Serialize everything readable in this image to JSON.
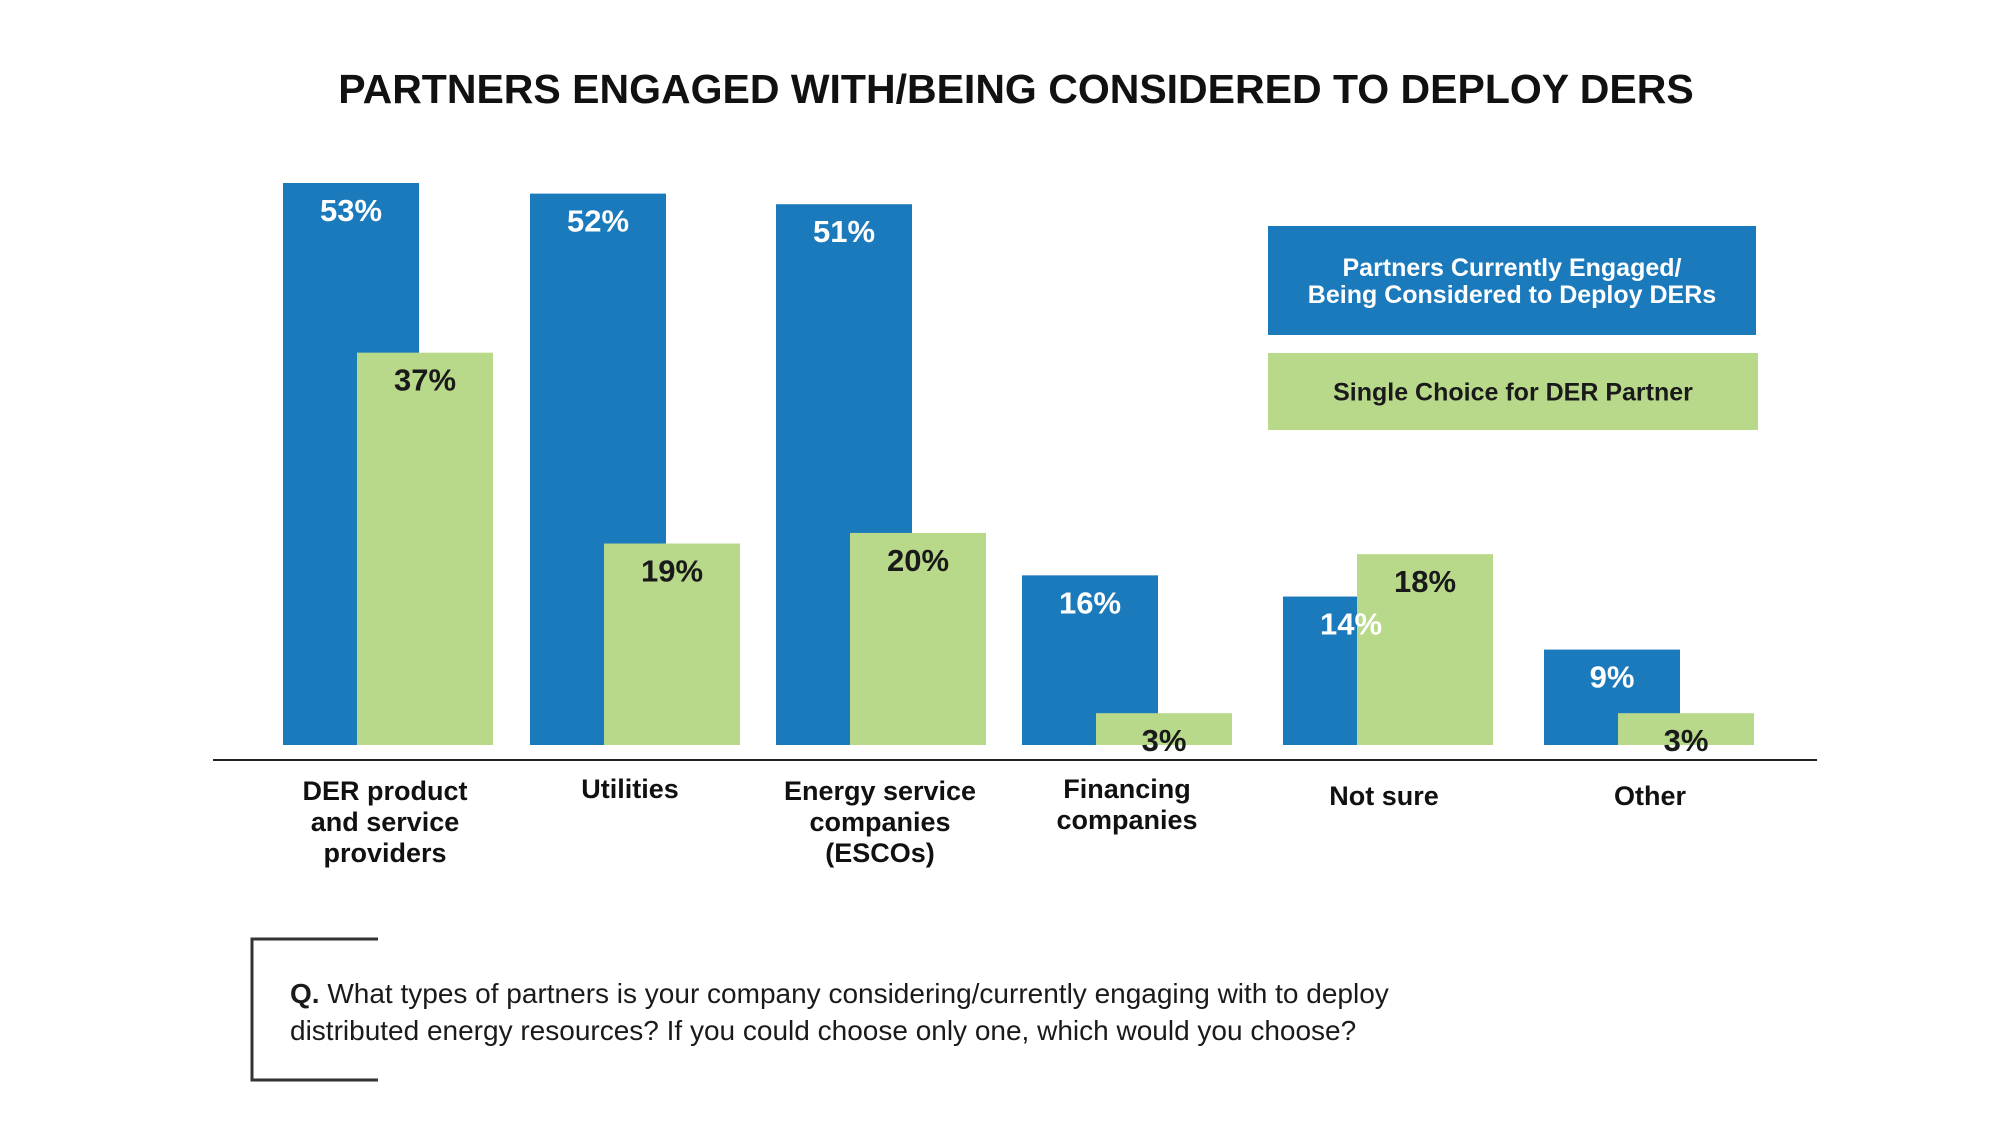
{
  "chart_data": {
    "type": "bar",
    "title": "PARTNERS ENGAGED WITH/BEING CONSIDERED TO DEPLOY DERS",
    "categories": [
      [
        "DER product",
        "and service",
        "providers"
      ],
      [
        "Utilities"
      ],
      [
        "Energy service",
        "companies",
        "(ESCOs)"
      ],
      [
        "Financing",
        "companies"
      ],
      [
        "Not sure"
      ],
      [
        "Other"
      ]
    ],
    "series": [
      {
        "name": [
          "Partners Currently Engaged/",
          "Being Considered to Deploy DERs"
        ],
        "color": "#1a7abb",
        "label_color": "#ffffff",
        "values": [
          53,
          52,
          51,
          16,
          14,
          9
        ],
        "labels": [
          "53%",
          "52%",
          "51%",
          "16%",
          "14%",
          "9%"
        ]
      },
      {
        "name": [
          "Single Choice for DER Partner"
        ],
        "color": "#b9d98a",
        "label_color": "#1a1a1a",
        "values": [
          37,
          19,
          20,
          3,
          18,
          3
        ],
        "labels": [
          "37%",
          "19%",
          "20%",
          "3%",
          "18%",
          "3%"
        ]
      }
    ],
    "ylim": [
      0,
      53
    ],
    "xlabel": "",
    "ylabel": "",
    "grid": false,
    "legend_position": "top-right"
  },
  "note": {
    "prefix": "Q.",
    "line1": " What types of partners is your company considering/currently engaging with to deploy",
    "line2": "distributed energy resources? If you could choose only one, which would you choose?"
  }
}
